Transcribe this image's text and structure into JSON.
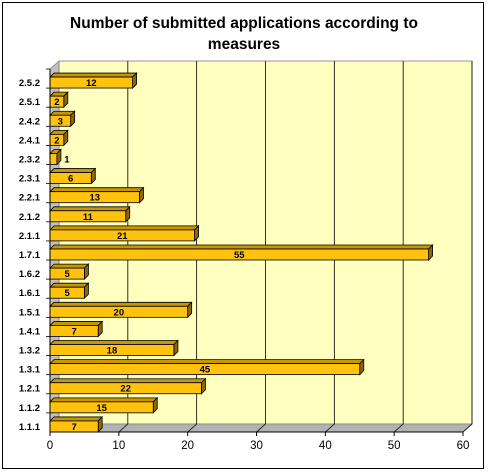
{
  "chart_data": {
    "type": "bar",
    "orientation": "horizontal",
    "title": "Number of submitted applications according to measures",
    "categories": [
      "2.5.2",
      "2.5.1",
      "2.4.2",
      "2.4.1",
      "2.3.2",
      "2.3.1",
      "2.2.1",
      "2.1.2",
      "2.1.1",
      "1.7.1",
      "1.6.2",
      "1.6.1",
      "1.5.1",
      "1.4.1",
      "1.3.2",
      "1.3.1",
      "1.2.1",
      "1.1.2",
      "1.1.1"
    ],
    "values": [
      12,
      2,
      3,
      2,
      1,
      6,
      13,
      11,
      21,
      55,
      5,
      5,
      20,
      7,
      18,
      45,
      22,
      15,
      7
    ],
    "xlim": [
      0,
      60
    ],
    "x_ticks": [
      "0",
      "10",
      "20",
      "30",
      "40",
      "50",
      "60"
    ],
    "xlabel": "",
    "ylabel": "",
    "grid": "vertical",
    "legend": "none",
    "colors": {
      "bar_face": "#FFC20E",
      "bar_top": "#C79600",
      "bar_side": "#8C6800",
      "plot_wall": "#FFFFC0",
      "plot_floor": "#B2B2B2"
    }
  }
}
